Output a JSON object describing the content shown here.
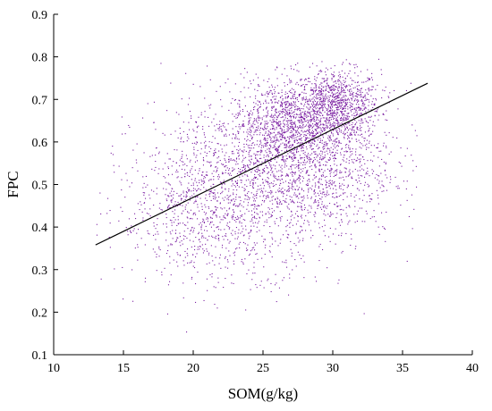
{
  "chart_data": {
    "type": "scatter",
    "xlabel": "SOM(g/kg)",
    "ylabel": "FPC",
    "xlim": [
      10,
      40
    ],
    "ylim": [
      0.1,
      0.9
    ],
    "xticks": [
      "10",
      "15",
      "20",
      "25",
      "30",
      "35",
      "40"
    ],
    "yticks": [
      "0.1",
      "0.2",
      "0.3",
      "0.4",
      "0.5",
      "0.6",
      "0.7",
      "0.8",
      "0.9"
    ],
    "grid": false,
    "point_color": "#7b1fa2",
    "fit_line": {
      "x": [
        13,
        36.8
      ],
      "y": [
        0.358,
        0.738
      ],
      "color": "#000000"
    },
    "clusters": [
      {
        "cx": 30.2,
        "cy": 0.69,
        "sx": 1.6,
        "sy": 0.04,
        "n": 900
      },
      {
        "cx": 26.8,
        "cy": 0.64,
        "sx": 2.0,
        "sy": 0.05,
        "n": 900
      },
      {
        "cx": 28.5,
        "cy": 0.55,
        "sx": 3.0,
        "sy": 0.09,
        "n": 1300
      },
      {
        "cx": 23.0,
        "cy": 0.5,
        "sx": 3.6,
        "sy": 0.1,
        "n": 1100
      },
      {
        "cx": 20.5,
        "cy": 0.42,
        "sx": 3.0,
        "sy": 0.08,
        "n": 450
      }
    ]
  }
}
